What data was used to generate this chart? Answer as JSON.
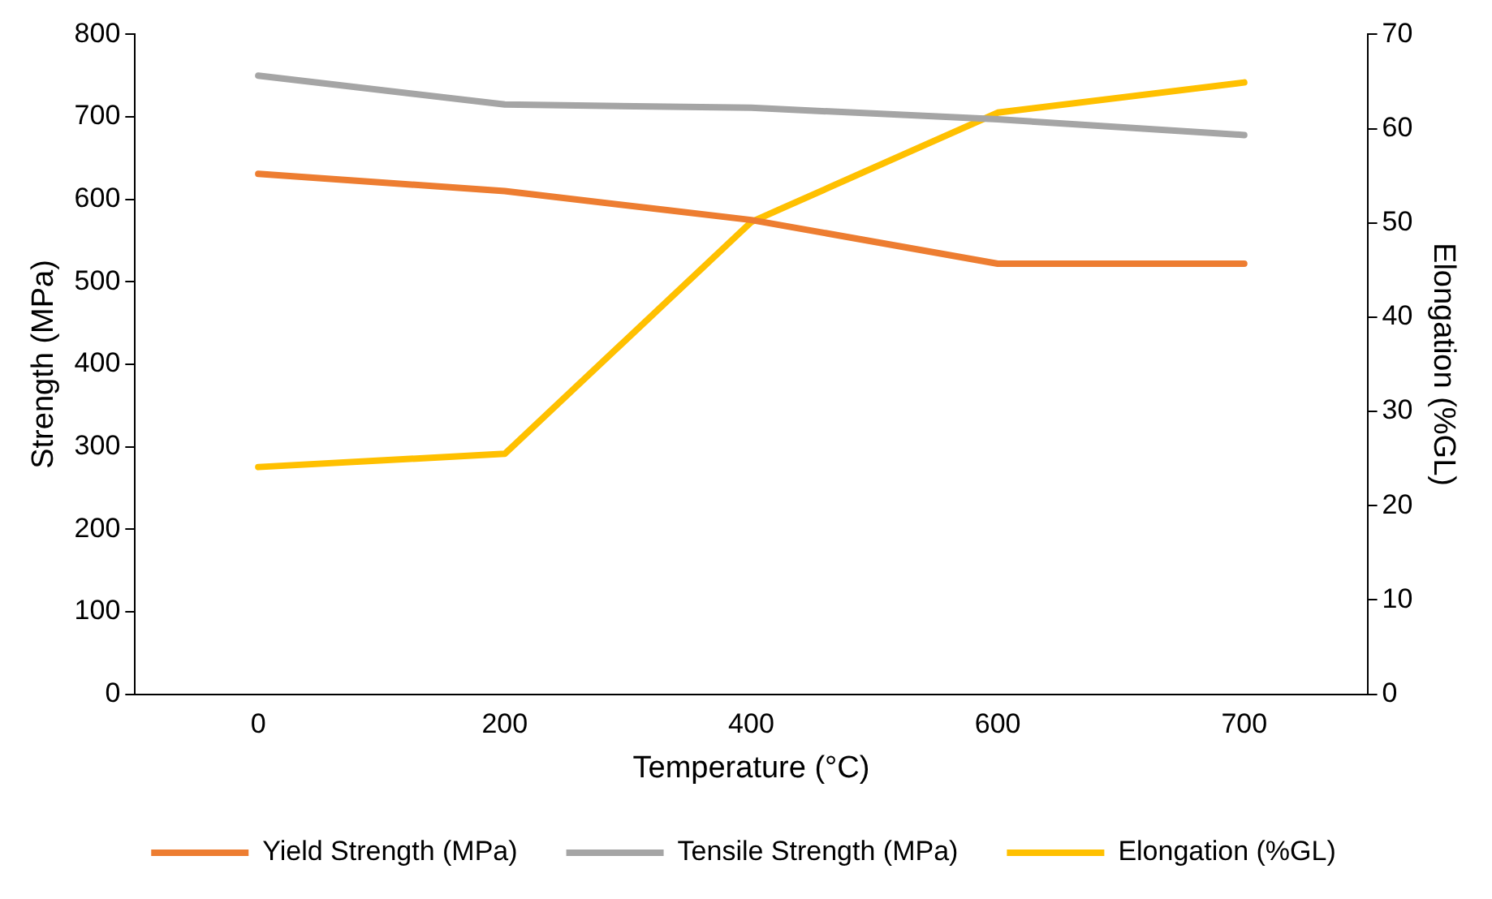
{
  "chart_data": {
    "type": "line",
    "xlabel": "Temperature (°C)",
    "ylabel": "Strength (MPa)",
    "y2label": "Elongation (%GL)",
    "categories": [
      "0",
      "200",
      "400",
      "600",
      "700"
    ],
    "series": [
      {
        "name": "Yield Strength (MPa)",
        "color": "#ed7d31",
        "values": [
          631,
          610,
          575,
          522,
          522
        ]
      },
      {
        "name": "Tensile Strength (MPa)",
        "color": "#a5a5a5",
        "values": [
          750,
          715,
          711,
          697,
          678
        ]
      },
      {
        "name": "Elongation (%GL)",
        "color": "#ffc000",
        "axis": "y2",
        "values": [
          24.1,
          25.5,
          50.1,
          61.7,
          64.9
        ]
      }
    ],
    "ylim": [
      0,
      800
    ],
    "yticks": [
      0,
      100,
      200,
      300,
      400,
      500,
      600,
      700,
      800
    ],
    "y2lim": [
      0,
      70
    ],
    "y2ticks": [
      0,
      10,
      20,
      30,
      40,
      50,
      60,
      70
    ],
    "grid": false,
    "legend": "bottom",
    "marker": "none",
    "line_style": "solid"
  }
}
